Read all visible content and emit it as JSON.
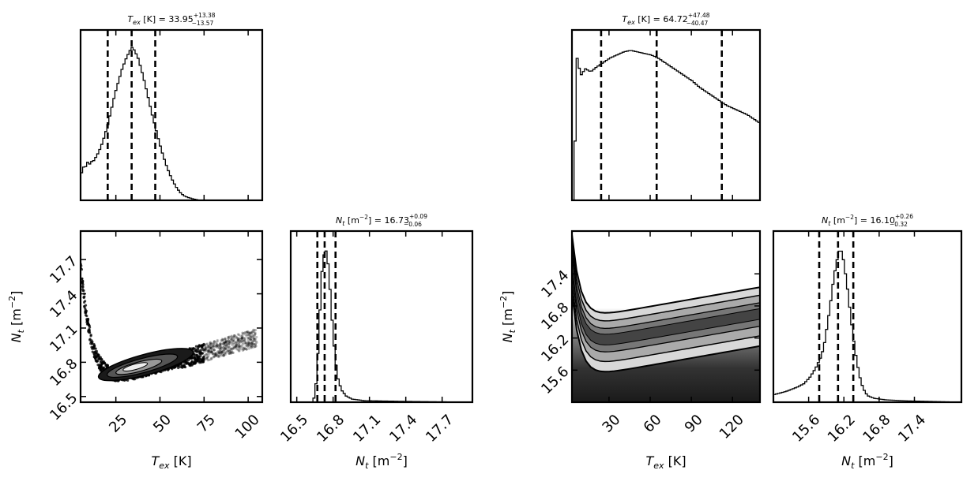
{
  "chart_data": [
    {
      "id": "L_tex_hist",
      "type": "histogram",
      "title": {
        "main": "T",
        "sub": "ex",
        "rest": " [K] = 33.95",
        "sup": "+13.38",
        "sub2": "−13.57"
      },
      "xlim": [
        5,
        108
      ],
      "ylim": [
        0,
        1
      ],
      "xticks": [
        25,
        50,
        75,
        100
      ],
      "xticklabels": [],
      "quantiles": [
        20.38,
        33.95,
        47.33
      ],
      "curve": [
        [
          5,
          0.18
        ],
        [
          6,
          0.22
        ],
        [
          7,
          0.2
        ],
        [
          8,
          0.27
        ],
        [
          9,
          0.22
        ],
        [
          10,
          0.25
        ],
        [
          12,
          0.26
        ],
        [
          14,
          0.3
        ],
        [
          16,
          0.35
        ],
        [
          18,
          0.42
        ],
        [
          20,
          0.5
        ],
        [
          22,
          0.6
        ],
        [
          24,
          0.7
        ],
        [
          26,
          0.78
        ],
        [
          28,
          0.86
        ],
        [
          30,
          0.92
        ],
        [
          32,
          0.97
        ],
        [
          33.5,
          1.0
        ],
        [
          35,
          0.98
        ],
        [
          37,
          0.93
        ],
        [
          39,
          0.85
        ],
        [
          41,
          0.76
        ],
        [
          43,
          0.66
        ],
        [
          45,
          0.56
        ],
        [
          47,
          0.47
        ],
        [
          49,
          0.38
        ],
        [
          51,
          0.3
        ],
        [
          53,
          0.23
        ],
        [
          55,
          0.17
        ],
        [
          57,
          0.12
        ],
        [
          59,
          0.08
        ],
        [
          61,
          0.05
        ],
        [
          63,
          0.03
        ],
        [
          65,
          0.02
        ],
        [
          68,
          0.01
        ],
        [
          72,
          0.0
        ],
        [
          108,
          0.0
        ]
      ]
    },
    {
      "id": "R_tex_hist",
      "type": "histogram",
      "title": {
        "main": "T",
        "sub": "ex",
        "rest": " [K] = 64.72",
        "sup": "+47.48",
        "sub2": "−40.47"
      },
      "xlim": [
        3,
        140
      ],
      "ylim": [
        0,
        1
      ],
      "xticks": [
        30,
        60,
        90,
        120
      ],
      "xticklabels": [],
      "quantiles": [
        24.25,
        64.72,
        112.2
      ],
      "curve": [
        [
          3,
          0.0
        ],
        [
          4,
          0.1
        ],
        [
          5,
          0.65
        ],
        [
          6,
          0.93
        ],
        [
          7,
          0.88
        ],
        [
          9,
          0.82
        ],
        [
          12,
          0.86
        ],
        [
          16,
          0.84
        ],
        [
          20,
          0.87
        ],
        [
          25,
          0.9
        ],
        [
          30,
          0.93
        ],
        [
          35,
          0.95
        ],
        [
          40,
          0.97
        ],
        [
          45,
          0.98
        ],
        [
          50,
          0.97
        ],
        [
          55,
          0.96
        ],
        [
          60,
          0.95
        ],
        [
          65,
          0.93
        ],
        [
          70,
          0.9
        ],
        [
          75,
          0.87
        ],
        [
          80,
          0.84
        ],
        [
          85,
          0.81
        ],
        [
          90,
          0.78
        ],
        [
          95,
          0.74
        ],
        [
          100,
          0.71
        ],
        [
          105,
          0.68
        ],
        [
          110,
          0.65
        ],
        [
          115,
          0.62
        ],
        [
          120,
          0.6
        ],
        [
          125,
          0.58
        ],
        [
          130,
          0.56
        ],
        [
          135,
          0.53
        ],
        [
          140,
          0.5
        ]
      ]
    },
    {
      "id": "L_joint",
      "type": "scatter",
      "xlim": [
        5,
        108
      ],
      "ylim": [
        16.45,
        17.95
      ],
      "xticks": [
        25,
        50,
        75,
        100
      ],
      "xticklabels": [
        "25",
        "50",
        "75",
        "100"
      ],
      "yticks": [
        16.5,
        16.8,
        17.1,
        17.4,
        17.7
      ],
      "yticklabels": [
        "16.5",
        "16.8",
        "17.1",
        "17.4",
        "17.7"
      ],
      "xlabel": {
        "main": "T",
        "sub": "ex",
        "rest": " [K]"
      },
      "ylabel": {
        "main": "N",
        "sub": "t",
        "rest": " [m",
        "sup": "−2",
        "end": "]"
      }
    },
    {
      "id": "L_nt_hist",
      "type": "histogram",
      "title": {
        "main": "N",
        "sub": "t",
        "rest": " [m",
        "sup": "−2",
        "rest2": "] = 16.73",
        "sup2": "+0.09",
        "sub2": "−0.06"
      },
      "xlim": [
        16.45,
        17.95
      ],
      "ylim": [
        0,
        1
      ],
      "xticks": [
        16.5,
        16.8,
        17.1,
        17.4,
        17.7
      ],
      "xticklabels": [
        "16.5",
        "16.8",
        "17.1",
        "17.4",
        "17.7"
      ],
      "xlabel": {
        "main": "N",
        "sub": "t",
        "rest": " [m",
        "sup": "−2",
        "end": "]"
      },
      "quantiles": [
        16.67,
        16.73,
        16.82
      ],
      "curve": [
        [
          16.45,
          0.0
        ],
        [
          16.62,
          0.0
        ],
        [
          16.64,
          0.04
        ],
        [
          16.66,
          0.2
        ],
        [
          16.68,
          0.55
        ],
        [
          16.7,
          0.85
        ],
        [
          16.72,
          0.98
        ],
        [
          16.73,
          1.0
        ],
        [
          16.75,
          0.9
        ],
        [
          16.77,
          0.7
        ],
        [
          16.79,
          0.45
        ],
        [
          16.81,
          0.28
        ],
        [
          16.83,
          0.16
        ],
        [
          16.86,
          0.08
        ],
        [
          16.9,
          0.04
        ],
        [
          16.95,
          0.02
        ],
        [
          17.05,
          0.01
        ],
        [
          17.4,
          0.005
        ],
        [
          17.95,
          0.0
        ]
      ]
    },
    {
      "id": "R_joint",
      "type": "heatmap",
      "xlim": [
        3,
        140
      ],
      "ylim": [
        15.0,
        18.2
      ],
      "xticks": [
        30,
        60,
        90,
        120
      ],
      "xticklabels": [
        "30",
        "60",
        "90",
        "120"
      ],
      "yticks": [
        15.6,
        16.2,
        16.8,
        17.4
      ],
      "yticklabels": [
        "15.6",
        "16.2",
        "16.8",
        "17.4"
      ],
      "xlabel": {
        "main": "T",
        "sub": "ex",
        "rest": " [K]"
      },
      "ylabel": {
        "main": "N",
        "sub": "t",
        "rest": " [m",
        "sup": "−2",
        "end": "]"
      }
    },
    {
      "id": "R_nt_hist",
      "type": "histogram",
      "title": {
        "main": "N",
        "sub": "t",
        "rest": " [m",
        "sup": "−2",
        "rest2": "] = 16.10",
        "sup2": "+0.26",
        "sub2": "−0.32"
      },
      "xlim": [
        15.0,
        18.2
      ],
      "ylim": [
        0,
        1
      ],
      "xticks": [
        15.6,
        16.2,
        16.8,
        17.4
      ],
      "xticklabels": [
        "15.6",
        "16.2",
        "16.8",
        "17.4"
      ],
      "xlabel": {
        "main": "N",
        "sub": "t",
        "rest": " [m",
        "sup": "−2",
        "end": "]"
      },
      "quantiles": [
        15.78,
        16.1,
        16.36
      ],
      "curve": [
        [
          15.0,
          0.05
        ],
        [
          15.2,
          0.07
        ],
        [
          15.4,
          0.1
        ],
        [
          15.5,
          0.12
        ],
        [
          15.6,
          0.16
        ],
        [
          15.7,
          0.22
        ],
        [
          15.8,
          0.3
        ],
        [
          15.85,
          0.38
        ],
        [
          15.9,
          0.5
        ],
        [
          15.95,
          0.63
        ],
        [
          16.0,
          0.78
        ],
        [
          16.05,
          0.9
        ],
        [
          16.1,
          0.98
        ],
        [
          16.12,
          1.0
        ],
        [
          16.16,
          0.96
        ],
        [
          16.2,
          0.86
        ],
        [
          16.25,
          0.72
        ],
        [
          16.3,
          0.55
        ],
        [
          16.35,
          0.4
        ],
        [
          16.4,
          0.27
        ],
        [
          16.45,
          0.17
        ],
        [
          16.5,
          0.1
        ],
        [
          16.55,
          0.06
        ],
        [
          16.6,
          0.04
        ],
        [
          16.7,
          0.025
        ],
        [
          16.9,
          0.015
        ],
        [
          17.3,
          0.008
        ],
        [
          18.2,
          0.0
        ]
      ]
    }
  ]
}
